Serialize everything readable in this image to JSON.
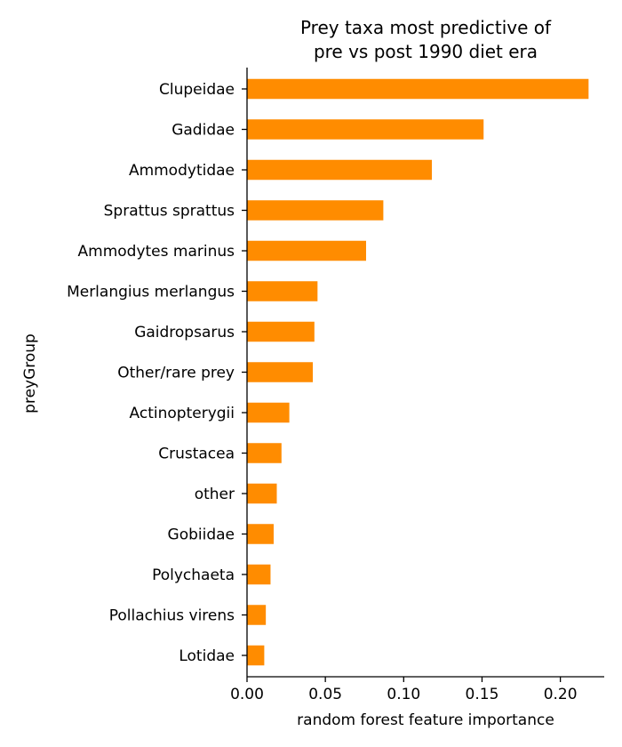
{
  "chart_data": {
    "type": "bar",
    "orientation": "horizontal",
    "title_lines": [
      "Prey taxa most predictive of",
      "pre vs post 1990 diet era"
    ],
    "xlabel": "random forest feature importance",
    "ylabel": "preyGroup",
    "xlim": [
      0,
      0.228
    ],
    "xticks": [
      "0.00",
      "0.05",
      "0.10",
      "0.15",
      "0.20"
    ],
    "categories": [
      "Clupeidae",
      "Gadidae",
      "Ammodytidae",
      "Sprattus sprattus",
      "Ammodytes marinus",
      "Merlangius merlangus",
      "Gaidropsarus",
      "Other/rare prey",
      "Actinopterygii",
      "Crustacea",
      "other",
      "Gobiidae",
      "Polychaeta",
      "Pollachius virens",
      "Lotidae"
    ],
    "values": [
      0.218,
      0.151,
      0.118,
      0.087,
      0.076,
      0.045,
      0.043,
      0.042,
      0.027,
      0.022,
      0.019,
      0.017,
      0.015,
      0.012,
      0.011
    ],
    "bar_color": "#ff8c00",
    "grid": false,
    "legend": "none"
  }
}
